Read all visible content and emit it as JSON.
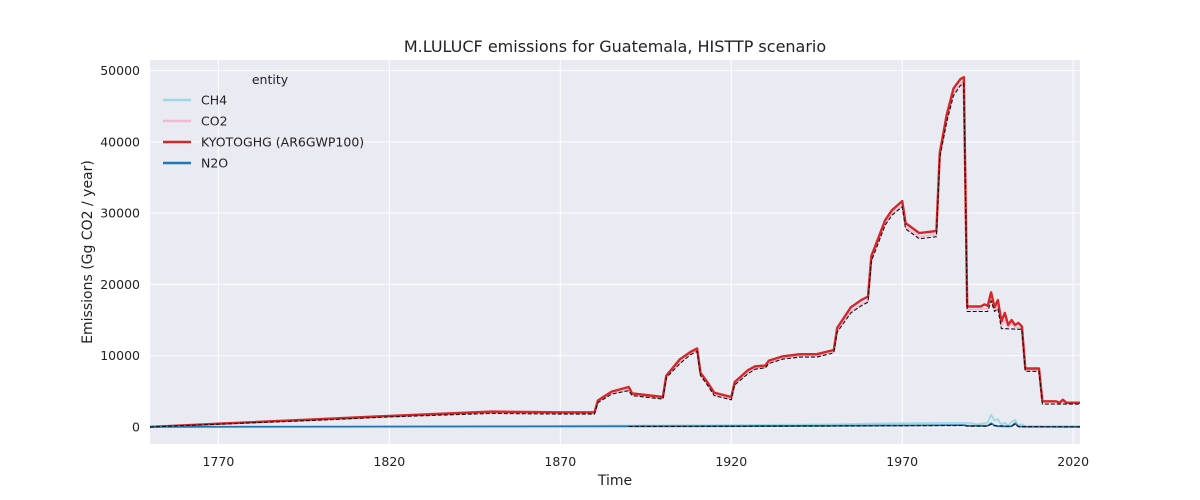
{
  "chart_data": {
    "type": "line",
    "title": "M.LULUCF emissions for Guatemala, HISTTP scenario",
    "xlabel": "Time",
    "ylabel": "Emissions (Gg CO2 / year)",
    "xlim": [
      1750,
      2022
    ],
    "ylim": [
      -2400,
      51500
    ],
    "xticks": [
      1770,
      1820,
      1870,
      1920,
      1970,
      2020
    ],
    "yticks": [
      0,
      10000,
      20000,
      30000,
      40000,
      50000
    ],
    "ytick_labels": [
      "0",
      "10000",
      "20000",
      "30000",
      "40000",
      "50000"
    ],
    "grid": true,
    "legend": {
      "title": "entity",
      "position": "top-left"
    },
    "series": [
      {
        "name": "CH4",
        "color": "#9edae5",
        "style": "solid",
        "points": [
          [
            1750,
            0
          ],
          [
            1800,
            60
          ],
          [
            1850,
            120
          ],
          [
            1880,
            150
          ],
          [
            1890,
            200
          ],
          [
            1920,
            250
          ],
          [
            1950,
            350
          ],
          [
            1960,
            450
          ],
          [
            1970,
            500
          ],
          [
            1980,
            550
          ],
          [
            1990,
            550
          ],
          [
            1992,
            350
          ],
          [
            1995,
            600
          ],
          [
            1996,
            1700
          ],
          [
            1997,
            900
          ],
          [
            1998,
            1100
          ],
          [
            1999,
            300
          ],
          [
            2000,
            600
          ],
          [
            2001,
            200
          ],
          [
            2002,
            700
          ],
          [
            2003,
            1000
          ],
          [
            2004,
            200
          ],
          [
            2005,
            400
          ],
          [
            2006,
            100
          ],
          [
            2010,
            50
          ],
          [
            2015,
            50
          ],
          [
            2020,
            50
          ],
          [
            2022,
            50
          ]
        ]
      },
      {
        "name": "CO2",
        "color": "#f7b6d2",
        "style": "solid",
        "points": [
          [
            1750,
            0
          ],
          [
            1770,
            400
          ],
          [
            1800,
            1000
          ],
          [
            1820,
            1450
          ],
          [
            1850,
            2000
          ],
          [
            1870,
            1900
          ],
          [
            1880,
            1900
          ],
          [
            1881,
            3500
          ],
          [
            1885,
            4700
          ],
          [
            1890,
            5200
          ],
          [
            1891,
            4500
          ],
          [
            1900,
            4000
          ],
          [
            1901,
            7000
          ],
          [
            1905,
            9000
          ],
          [
            1908,
            10300
          ],
          [
            1910,
            10800
          ],
          [
            1911,
            7300
          ],
          [
            1913,
            6000
          ],
          [
            1915,
            4500
          ],
          [
            1920,
            3900
          ],
          [
            1921,
            6000
          ],
          [
            1925,
            7600
          ],
          [
            1927,
            8200
          ],
          [
            1930,
            8400
          ],
          [
            1931,
            9000
          ],
          [
            1935,
            9600
          ],
          [
            1940,
            10000
          ],
          [
            1945,
            10000
          ],
          [
            1950,
            10600
          ],
          [
            1951,
            13500
          ],
          [
            1955,
            16200
          ],
          [
            1958,
            17200
          ],
          [
            1960,
            17700
          ],
          [
            1961,
            23500
          ],
          [
            1963,
            26000
          ],
          [
            1965,
            28500
          ],
          [
            1967,
            29900
          ],
          [
            1970,
            31100
          ],
          [
            1971,
            28000
          ],
          [
            1975,
            26700
          ],
          [
            1980,
            27000
          ],
          [
            1981,
            38000
          ],
          [
            1983,
            43000
          ],
          [
            1985,
            46800
          ],
          [
            1987,
            48200
          ],
          [
            1988,
            48500
          ],
          [
            1989,
            16500
          ],
          [
            1993,
            16500
          ],
          [
            1995,
            16600
          ],
          [
            1996,
            18000
          ],
          [
            1997,
            16500
          ],
          [
            1998,
            17000
          ],
          [
            1999,
            14200
          ],
          [
            2000,
            15000
          ],
          [
            2001,
            14000
          ],
          [
            2002,
            14500
          ],
          [
            2003,
            14000
          ],
          [
            2004,
            14000
          ],
          [
            2005,
            13900
          ],
          [
            2006,
            8000
          ],
          [
            2010,
            8000
          ],
          [
            2011,
            3500
          ],
          [
            2015,
            3500
          ],
          [
            2016,
            3300
          ],
          [
            2017,
            3600
          ],
          [
            2018,
            3300
          ],
          [
            2020,
            3300
          ],
          [
            2022,
            3300
          ]
        ]
      },
      {
        "name": "KYOTOGHG (AR6GWP100)",
        "color": "#d62728",
        "style": "solid",
        "points": [
          [
            1750,
            0
          ],
          [
            1770,
            450
          ],
          [
            1800,
            1100
          ],
          [
            1820,
            1550
          ],
          [
            1850,
            2150
          ],
          [
            1870,
            2050
          ],
          [
            1880,
            2050
          ],
          [
            1881,
            3700
          ],
          [
            1885,
            4950
          ],
          [
            1890,
            5600
          ],
          [
            1891,
            4700
          ],
          [
            1900,
            4200
          ],
          [
            1901,
            7200
          ],
          [
            1905,
            9500
          ],
          [
            1908,
            10500
          ],
          [
            1910,
            11000
          ],
          [
            1911,
            7600
          ],
          [
            1913,
            6300
          ],
          [
            1915,
            4800
          ],
          [
            1920,
            4200
          ],
          [
            1921,
            6300
          ],
          [
            1925,
            8000
          ],
          [
            1927,
            8500
          ],
          [
            1930,
            8600
          ],
          [
            1931,
            9300
          ],
          [
            1935,
            9900
          ],
          [
            1940,
            10200
          ],
          [
            1945,
            10200
          ],
          [
            1950,
            10800
          ],
          [
            1951,
            13900
          ],
          [
            1955,
            16800
          ],
          [
            1958,
            17800
          ],
          [
            1960,
            18300
          ],
          [
            1961,
            24000
          ],
          [
            1963,
            26500
          ],
          [
            1965,
            29000
          ],
          [
            1967,
            30400
          ],
          [
            1970,
            31700
          ],
          [
            1971,
            28600
          ],
          [
            1975,
            27200
          ],
          [
            1980,
            27500
          ],
          [
            1981,
            38500
          ],
          [
            1983,
            43800
          ],
          [
            1985,
            47500
          ],
          [
            1987,
            48800
          ],
          [
            1988,
            49100
          ],
          [
            1989,
            16900
          ],
          [
            1993,
            16900
          ],
          [
            1994,
            17200
          ],
          [
            1995,
            17000
          ],
          [
            1996,
            18900
          ],
          [
            1997,
            16800
          ],
          [
            1998,
            17800
          ],
          [
            1999,
            14800
          ],
          [
            2000,
            16000
          ],
          [
            2001,
            14300
          ],
          [
            2002,
            15000
          ],
          [
            2003,
            14300
          ],
          [
            2004,
            14600
          ],
          [
            2005,
            14100
          ],
          [
            2006,
            8200
          ],
          [
            2010,
            8200
          ],
          [
            2011,
            3600
          ],
          [
            2015,
            3600
          ],
          [
            2016,
            3400
          ],
          [
            2017,
            3800
          ],
          [
            2018,
            3400
          ],
          [
            2020,
            3400
          ],
          [
            2022,
            3400
          ]
        ]
      },
      {
        "name": "N2O",
        "color": "#1f77b4",
        "style": "solid",
        "points": [
          [
            1750,
            0
          ],
          [
            1850,
            50
          ],
          [
            1890,
            80
          ],
          [
            1920,
            100
          ],
          [
            1950,
            150
          ],
          [
            1970,
            200
          ],
          [
            1988,
            250
          ],
          [
            1989,
            150
          ],
          [
            1995,
            150
          ],
          [
            1996,
            500
          ],
          [
            1997,
            200
          ],
          [
            1998,
            100
          ],
          [
            2000,
            80
          ],
          [
            2001,
            50
          ],
          [
            2002,
            100
          ],
          [
            2003,
            500
          ],
          [
            2004,
            50
          ],
          [
            2006,
            30
          ],
          [
            2022,
            20
          ]
        ]
      },
      {
        "name": "",
        "color": "#111111",
        "style": "dashed",
        "points": [
          [
            1750,
            0
          ],
          [
            1770,
            380
          ],
          [
            1800,
            950
          ],
          [
            1820,
            1400
          ],
          [
            1850,
            1900
          ],
          [
            1870,
            1800
          ],
          [
            1880,
            1800
          ],
          [
            1881,
            3400
          ],
          [
            1885,
            4600
          ],
          [
            1890,
            5100
          ],
          [
            1891,
            4400
          ],
          [
            1900,
            3900
          ],
          [
            1901,
            6900
          ],
          [
            1905,
            8900
          ],
          [
            1908,
            10100
          ],
          [
            1910,
            10600
          ],
          [
            1911,
            7200
          ],
          [
            1913,
            5900
          ],
          [
            1915,
            4400
          ],
          [
            1920,
            3800
          ],
          [
            1921,
            5900
          ],
          [
            1925,
            7500
          ],
          [
            1927,
            8100
          ],
          [
            1930,
            8300
          ],
          [
            1931,
            8900
          ],
          [
            1935,
            9500
          ],
          [
            1940,
            9800
          ],
          [
            1945,
            9800
          ],
          [
            1950,
            10400
          ],
          [
            1951,
            13300
          ],
          [
            1955,
            16000
          ],
          [
            1958,
            17000
          ],
          [
            1960,
            17500
          ],
          [
            1961,
            23300
          ],
          [
            1963,
            25800
          ],
          [
            1965,
            28300
          ],
          [
            1967,
            29700
          ],
          [
            1970,
            30900
          ],
          [
            1971,
            27800
          ],
          [
            1975,
            26400
          ],
          [
            1980,
            26700
          ],
          [
            1981,
            37800
          ],
          [
            1983,
            42800
          ],
          [
            1985,
            46500
          ],
          [
            1987,
            47900
          ],
          [
            1988,
            48200
          ],
          [
            1989,
            16200
          ],
          [
            1995,
            16200
          ],
          [
            1996,
            17700
          ],
          [
            1997,
            16200
          ],
          [
            1998,
            16600
          ],
          [
            1999,
            13800
          ],
          [
            2005,
            13700
          ],
          [
            2006,
            7800
          ],
          [
            2010,
            7800
          ],
          [
            2011,
            3200
          ],
          [
            2022,
            3200
          ]
        ]
      },
      {
        "name": "",
        "color": "#111111",
        "style": "dashed",
        "points": [
          [
            1890,
            50
          ],
          [
            1920,
            80
          ],
          [
            1950,
            120
          ],
          [
            1970,
            150
          ],
          [
            1988,
            200
          ],
          [
            1989,
            100
          ],
          [
            1995,
            100
          ],
          [
            1996,
            400
          ],
          [
            1997,
            150
          ],
          [
            2002,
            80
          ],
          [
            2003,
            400
          ],
          [
            2004,
            30
          ],
          [
            2022,
            20
          ]
        ]
      }
    ]
  }
}
